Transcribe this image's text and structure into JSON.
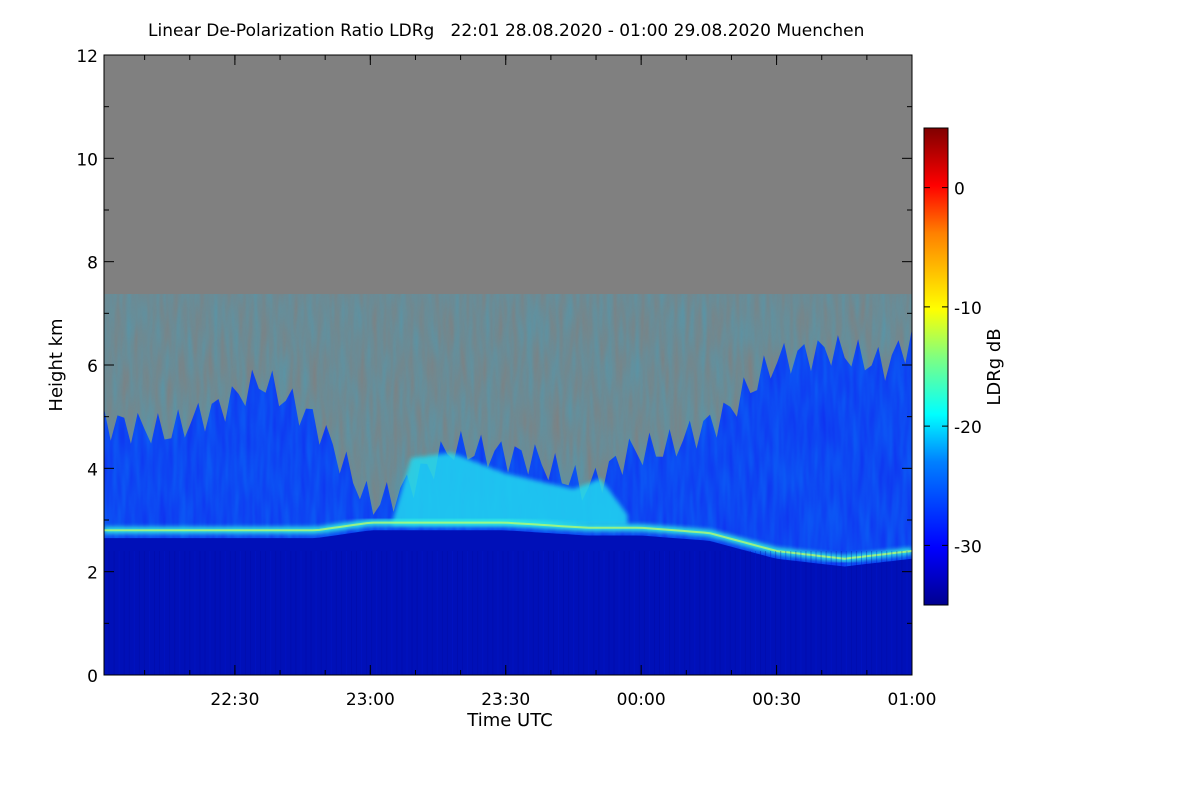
{
  "title": "Linear De-Polarization Ratio LDRg   22:01 28.08.2020 - 01:00 29.08.2020 Muenchen",
  "chart_data": {
    "type": "heatmap",
    "title": "Linear De-Polarization Ratio LDRg   22:01 28.08.2020 - 01:00 29.08.2020 Muenchen",
    "xlabel": "Time UTC",
    "ylabel": "Height km",
    "colorbar_label": "LDRg dB",
    "x_range_hours": [
      22.0167,
      25.0
    ],
    "y_range_km": [
      0,
      12
    ],
    "x_ticks": [
      {
        "value": 22.5,
        "label": "22:30"
      },
      {
        "value": 23.0,
        "label": "23:00"
      },
      {
        "value": 23.5,
        "label": "23:30"
      },
      {
        "value": 24.0,
        "label": "00:00"
      },
      {
        "value": 24.5,
        "label": "00:30"
      },
      {
        "value": 25.0,
        "label": "01:00"
      }
    ],
    "y_ticks": [
      0,
      2,
      4,
      6,
      8,
      10,
      12
    ],
    "colorbar_range_db": [
      -35,
      5
    ],
    "colorbar_ticks": [
      0,
      -10,
      -20,
      -30
    ],
    "no_signal_color": "#808080",
    "cloud_layer": {
      "comment": "approximate cloud-base (bright band) height in km over time",
      "times": [
        22.02,
        22.5,
        22.8,
        23.0,
        23.2,
        23.5,
        23.8,
        24.0,
        24.25,
        24.5,
        24.75,
        25.0
      ],
      "base_km": [
        2.8,
        2.8,
        2.8,
        2.95,
        2.95,
        2.95,
        2.85,
        2.85,
        2.75,
        2.4,
        2.25,
        2.4
      ]
    },
    "cloud_top": {
      "comment": "approximate upper boundary of measured signal (km)",
      "times": [
        22.02,
        22.25,
        22.45,
        22.6,
        22.8,
        23.0,
        23.1,
        23.3,
        23.6,
        23.8,
        23.95,
        24.1,
        24.3,
        24.5,
        24.7,
        24.9,
        25.0
      ],
      "top_km": [
        4.9,
        4.7,
        5.2,
        5.7,
        4.9,
        3.3,
        3.5,
        4.4,
        4.2,
        3.6,
        4.3,
        4.4,
        5.0,
        6.1,
        6.3,
        6.0,
        6.5
      ]
    }
  }
}
